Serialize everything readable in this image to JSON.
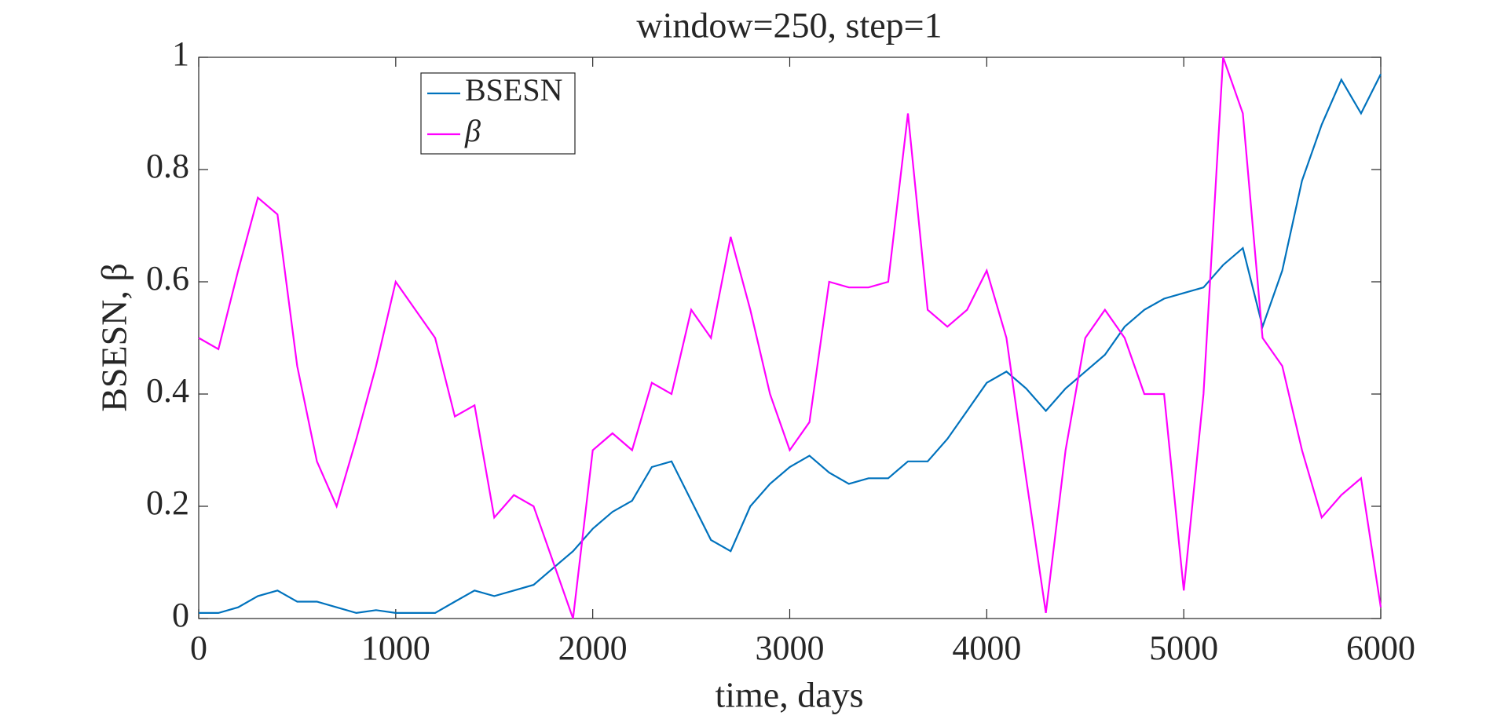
{
  "chart_data": {
    "type": "line",
    "title": "window=250, step=1",
    "xlabel": "time, days",
    "ylabel": "BSESN, β",
    "x": [
      0,
      100,
      200,
      300,
      400,
      500,
      600,
      700,
      800,
      900,
      1000,
      1100,
      1200,
      1300,
      1400,
      1500,
      1600,
      1700,
      1800,
      1900,
      2000,
      2100,
      2200,
      2300,
      2400,
      2500,
      2600,
      2700,
      2800,
      2900,
      3000,
      3100,
      3200,
      3300,
      3400,
      3500,
      3600,
      3700,
      3800,
      3900,
      4000,
      4100,
      4200,
      4300,
      4400,
      4500,
      4600,
      4700,
      4800,
      4900,
      5000,
      5100,
      5200,
      5300,
      5400,
      5500,
      5600,
      5700,
      5800,
      5900,
      6000
    ],
    "series": [
      {
        "name": "BSESN",
        "color": "#0072bd",
        "values": [
          0.01,
          0.01,
          0.02,
          0.04,
          0.05,
          0.03,
          0.03,
          0.02,
          0.01,
          0.015,
          0.01,
          0.01,
          0.01,
          0.03,
          0.05,
          0.04,
          0.05,
          0.06,
          0.09,
          0.12,
          0.16,
          0.19,
          0.21,
          0.27,
          0.28,
          0.21,
          0.14,
          0.12,
          0.2,
          0.24,
          0.27,
          0.29,
          0.26,
          0.24,
          0.25,
          0.25,
          0.28,
          0.28,
          0.32,
          0.37,
          0.42,
          0.44,
          0.41,
          0.37,
          0.41,
          0.44,
          0.47,
          0.52,
          0.55,
          0.57,
          0.58,
          0.59,
          0.63,
          0.66,
          0.52,
          0.62,
          0.78,
          0.88,
          0.96,
          0.9,
          0.97
        ]
      },
      {
        "name": "β",
        "color": "#ff00ff",
        "values": [
          0.5,
          0.48,
          0.62,
          0.75,
          0.72,
          0.45,
          0.28,
          0.2,
          0.32,
          0.45,
          0.6,
          0.55,
          0.5,
          0.36,
          0.38,
          0.18,
          0.22,
          0.2,
          0.1,
          0.0,
          0.3,
          0.33,
          0.3,
          0.42,
          0.4,
          0.55,
          0.5,
          0.68,
          0.55,
          0.4,
          0.3,
          0.35,
          0.6,
          0.59,
          0.59,
          0.6,
          0.9,
          0.55,
          0.52,
          0.55,
          0.62,
          0.5,
          0.25,
          0.01,
          0.3,
          0.5,
          0.55,
          0.5,
          0.4,
          0.4,
          0.05,
          0.4,
          1.0,
          0.9,
          0.5,
          0.45,
          0.3,
          0.18,
          0.22,
          0.25,
          0.02
        ]
      }
    ],
    "xlim": [
      0,
      6000
    ],
    "xticks": [
      0,
      1000,
      2000,
      3000,
      4000,
      5000,
      6000
    ],
    "ylim": [
      0,
      1
    ],
    "yticks": [
      0,
      0.2,
      0.4,
      0.6,
      0.8,
      1
    ],
    "legend": "top-left"
  }
}
